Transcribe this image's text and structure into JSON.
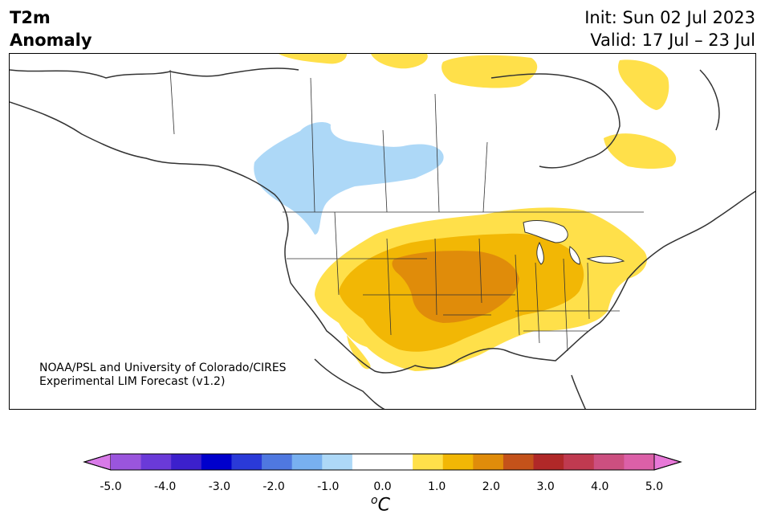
{
  "header": {
    "variable": "T2m",
    "field": "Anomaly",
    "init": "Init: Sun 02 Jul 2023",
    "valid": "Valid: 17 Jul – 23 Jul"
  },
  "credit": {
    "line1": "NOAA/PSL and University of Colorado/CIRES",
    "line2": "Experimental LIM Forecast (v1.2)"
  },
  "colorbar": {
    "ticks": [
      "-5.0",
      "-4.0",
      "-3.0",
      "-2.0",
      "-1.0",
      "0.0",
      "1.0",
      "2.0",
      "3.0",
      "4.0",
      "5.0"
    ],
    "unit_base": "C",
    "unit_sup": "o",
    "colors": [
      "#d87ae8",
      "#9a55dd",
      "#6a3ad8",
      "#3c20cc",
      "#0000cc",
      "#2a3ad8",
      "#4f78e0",
      "#78b0f0",
      "#add8f7",
      "#ffffff",
      "#ffffff",
      "#ffe04a",
      "#f2b705",
      "#e08c0a",
      "#c4521a",
      "#b02828",
      "#c03a50",
      "#cc4f80",
      "#dc60a8",
      "#e878d8"
    ]
  },
  "anomaly_colors": {
    "cool": "#add8f7",
    "warm1": "#ffe04a",
    "warm2": "#f2b705",
    "warm3": "#e08c0a"
  }
}
